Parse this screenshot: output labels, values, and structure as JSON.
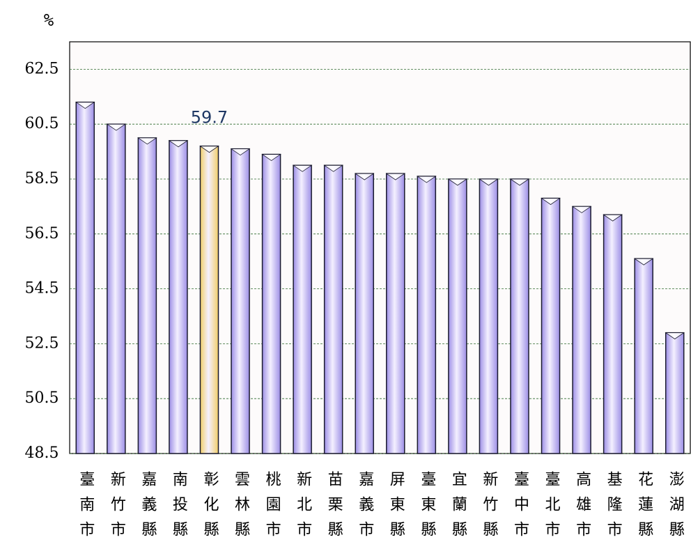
{
  "chart_data": {
    "type": "bar",
    "y_label": "%",
    "categories": [
      "臺南市",
      "新竹市",
      "嘉義縣",
      "南投縣",
      "彰化縣",
      "雲林縣",
      "桃園市",
      "新北市",
      "苗栗縣",
      "嘉義市",
      "屏東縣",
      "臺東縣",
      "宜蘭縣",
      "新竹縣",
      "臺中市",
      "臺北市",
      "高雄市",
      "基隆市",
      "花蓮縣",
      "澎湖縣"
    ],
    "values": [
      61.3,
      60.5,
      60.0,
      59.9,
      59.7,
      59.6,
      59.4,
      59.0,
      59.0,
      58.7,
      58.7,
      58.6,
      58.5,
      58.5,
      58.5,
      57.8,
      57.5,
      57.2,
      55.6,
      52.9
    ],
    "value_labels": [
      null,
      null,
      null,
      null,
      "59.7",
      null,
      null,
      null,
      null,
      null,
      null,
      null,
      null,
      null,
      null,
      null,
      null,
      null,
      null,
      null
    ],
    "colors": [
      "#9d8fe6",
      "#9d8fe6",
      "#9d8fe6",
      "#9d8fe6",
      "#f2cf6a",
      "#9d8fe6",
      "#9d8fe6",
      "#9d8fe6",
      "#9d8fe6",
      "#9d8fe6",
      "#9d8fe6",
      "#9d8fe6",
      "#9d8fe6",
      "#9d8fe6",
      "#9d8fe6",
      "#9d8fe6",
      "#9d8fe6",
      "#9d8fe6",
      "#9d8fe6",
      "#9d8fe6"
    ],
    "ylim": [
      48.5,
      63.5
    ],
    "yticks": [
      48.5,
      50.5,
      52.5,
      54.5,
      56.5,
      58.5,
      60.5,
      62.5
    ],
    "grid": true
  }
}
